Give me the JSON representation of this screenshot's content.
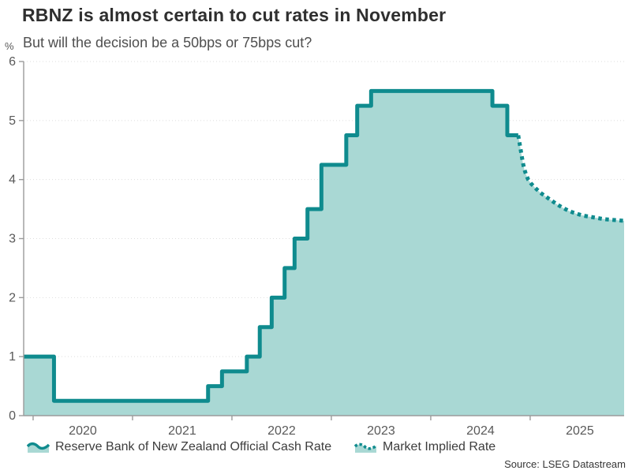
{
  "header": {
    "title": "RBNZ is almost certain to cut rates in November",
    "subtitle": "But will the decision be a 50bps or 75bps cut?",
    "unit": "%"
  },
  "legend": [
    {
      "label": "Reserve Bank of New Zealand Official Cash Rate",
      "style": "solid-step-area"
    },
    {
      "label": "Market Implied Rate",
      "style": "dotted-line"
    }
  ],
  "footer": {
    "source": "Source: LSEG Datastream"
  },
  "colors": {
    "line": "#0f8b8e",
    "fill": "#a9d8d4",
    "grid": "#dedede",
    "axis": "#9b9b9b",
    "tick_text": "#595959"
  },
  "chart_data": {
    "type": "area",
    "title": "RBNZ is almost certain to cut rates in November",
    "subtitle": "But will the decision be a 50bps or 75bps cut?",
    "ylabel": "%",
    "xlabel": "",
    "xlim": [
      2019.905,
      2025.945
    ],
    "ylim": [
      0,
      6
    ],
    "x_ticks": [
      2020,
      2021,
      2022,
      2023,
      2024,
      2025
    ],
    "y_ticks": [
      0,
      1,
      2,
      3,
      4,
      5,
      6
    ],
    "grid": "horizontal-dotted",
    "legend_position": "bottom",
    "series": [
      {
        "name": "Reserve Bank of New Zealand Official Cash Rate",
        "type": "step-area",
        "line_style": "solid",
        "points": [
          [
            2019.905,
            1.0
          ],
          [
            2020.21,
            0.25
          ],
          [
            2021.76,
            0.5
          ],
          [
            2021.9,
            0.75
          ],
          [
            2022.15,
            1.0
          ],
          [
            2022.28,
            1.5
          ],
          [
            2022.4,
            2.0
          ],
          [
            2022.53,
            2.5
          ],
          [
            2022.63,
            3.0
          ],
          [
            2022.76,
            3.5
          ],
          [
            2022.9,
            4.25
          ],
          [
            2023.15,
            4.75
          ],
          [
            2023.26,
            5.25
          ],
          [
            2023.4,
            5.5
          ],
          [
            2024.62,
            5.25
          ],
          [
            2024.77,
            4.75
          ],
          [
            2024.88,
            4.75
          ]
        ]
      },
      {
        "name": "Market Implied Rate",
        "type": "line",
        "line_style": "dotted",
        "points": [
          [
            2024.88,
            4.75
          ],
          [
            2024.895,
            4.6
          ],
          [
            2024.91,
            4.45
          ],
          [
            2024.925,
            4.3
          ],
          [
            2024.94,
            4.18
          ],
          [
            2024.96,
            4.08
          ],
          [
            2024.98,
            4.0
          ],
          [
            2025.01,
            3.93
          ],
          [
            2025.05,
            3.86
          ],
          [
            2025.1,
            3.78
          ],
          [
            2025.15,
            3.72
          ],
          [
            2025.21,
            3.65
          ],
          [
            2025.27,
            3.58
          ],
          [
            2025.33,
            3.52
          ],
          [
            2025.4,
            3.46
          ],
          [
            2025.47,
            3.42
          ],
          [
            2025.53,
            3.39
          ],
          [
            2025.6,
            3.37
          ],
          [
            2025.67,
            3.35
          ],
          [
            2025.74,
            3.33
          ],
          [
            2025.81,
            3.32
          ],
          [
            2025.88,
            3.31
          ],
          [
            2025.945,
            3.3
          ]
        ]
      }
    ]
  }
}
